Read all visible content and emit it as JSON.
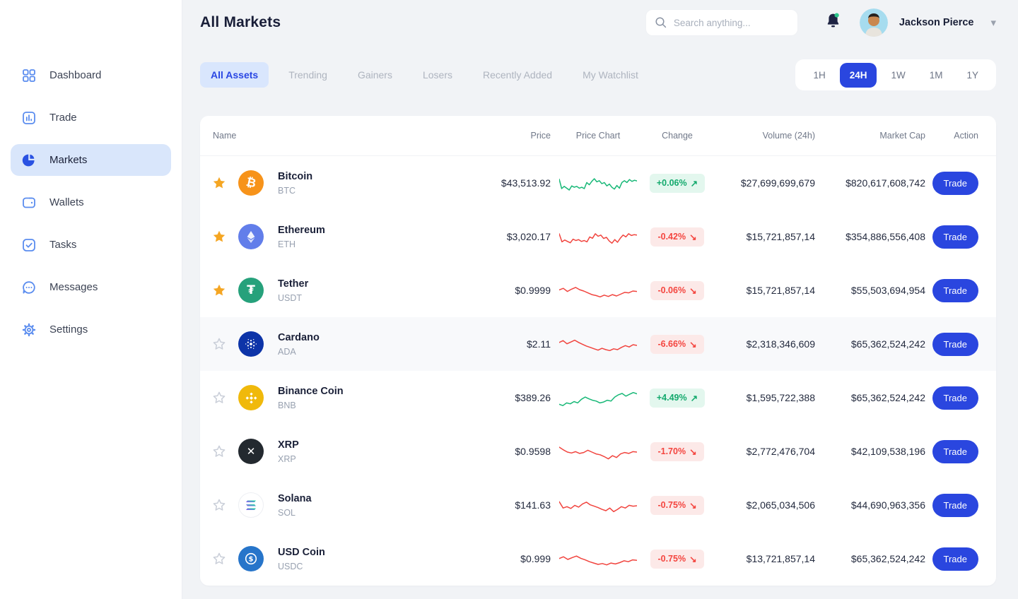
{
  "header": {
    "title": "All Markets",
    "search_placeholder": "Search anything...",
    "user_name": "Jackson Pierce"
  },
  "sidebar": {
    "items": [
      {
        "label": "Dashboard",
        "icon": "dashboard-grid-icon",
        "active": false
      },
      {
        "label": "Trade",
        "icon": "trade-chart-icon",
        "active": false
      },
      {
        "label": "Markets",
        "icon": "markets-pie-icon",
        "active": true
      },
      {
        "label": "Wallets",
        "icon": "wallet-icon",
        "active": false
      },
      {
        "label": "Tasks",
        "icon": "tasks-check-icon",
        "active": false
      },
      {
        "label": "Messages",
        "icon": "messages-bubble-icon",
        "active": false
      },
      {
        "label": "Settings",
        "icon": "settings-gear-icon",
        "active": false
      }
    ]
  },
  "tabs": [
    {
      "label": "All Assets",
      "active": true
    },
    {
      "label": "Trending",
      "active": false
    },
    {
      "label": "Gainers",
      "active": false
    },
    {
      "label": "Losers",
      "active": false
    },
    {
      "label": "Recently Added",
      "active": false
    },
    {
      "label": "My Watchlist",
      "active": false
    }
  ],
  "time_filters": [
    {
      "label": "1H",
      "active": false
    },
    {
      "label": "24H",
      "active": true
    },
    {
      "label": "1W",
      "active": false
    },
    {
      "label": "1M",
      "active": false
    },
    {
      "label": "1Y",
      "active": false
    }
  ],
  "table": {
    "columns": [
      "Name",
      "Price",
      "Price Chart",
      "Change",
      "Volume (24h)",
      "Market Cap",
      "Action"
    ],
    "action_label": "Trade",
    "arrow_up": "↗",
    "arrow_down": "↘",
    "rows": [
      {
        "name": "Bitcoin",
        "symbol": "BTC",
        "icon": "btc",
        "price": "$43,513.92",
        "change": "+0.06%",
        "direction": "up",
        "volume": "$27,699,699,679",
        "market_cap": "$820,617,608,742",
        "favorite": true,
        "highlighted": false,
        "sparkline": [
          70,
          28,
          38,
          30,
          22,
          40,
          34,
          38,
          30,
          34,
          28,
          55,
          45,
          60,
          72,
          58,
          63,
          50,
          55,
          40,
          48,
          34,
          26,
          42,
          30,
          55,
          63,
          55,
          68,
          60,
          65,
          62
        ]
      },
      {
        "name": "Ethereum",
        "symbol": "ETH",
        "icon": "eth",
        "price": "$3,020.17",
        "change": "-0.42%",
        "direction": "down",
        "volume": "$15,721,857,14",
        "market_cap": "$354,886,556,408",
        "favorite": true,
        "highlighted": false,
        "sparkline": [
          66,
          30,
          38,
          32,
          26,
          42,
          36,
          40,
          32,
          36,
          30,
          52,
          46,
          66,
          55,
          60,
          45,
          50,
          34,
          24,
          40,
          28,
          46,
          60,
          52,
          66,
          58,
          62,
          60
        ]
      },
      {
        "name": "Tether",
        "symbol": "USDT",
        "icon": "usdt",
        "price": "$0.9999",
        "change": "-0.06%",
        "direction": "down",
        "volume": "$15,721,857,14",
        "market_cap": "$55,503,694,954",
        "favorite": true,
        "highlighted": false,
        "sparkline": [
          55,
          62,
          48,
          58,
          66,
          56,
          50,
          42,
          34,
          30,
          24,
          32,
          26,
          34,
          28,
          36,
          44,
          42,
          50,
          48
        ]
      },
      {
        "name": "Cardano",
        "symbol": "ADA",
        "icon": "ada",
        "price": "$2.11",
        "change": "-6.66%",
        "direction": "down",
        "volume": "$2,318,346,609",
        "market_cap": "$65,362,524,242",
        "favorite": false,
        "highlighted": true,
        "sparkline": [
          60,
          68,
          54,
          62,
          70,
          60,
          52,
          44,
          38,
          32,
          26,
          34,
          28,
          24,
          32,
          28,
          38,
          46,
          40,
          50,
          47
        ]
      },
      {
        "name": "Binance Coin",
        "symbol": "BNB",
        "icon": "bnb",
        "price": "$389.26",
        "change": "+4.49%",
        "direction": "up",
        "volume": "$1,595,722,388",
        "market_cap": "$65,362,524,242",
        "favorite": false,
        "highlighted": false,
        "sparkline": [
          24,
          18,
          30,
          26,
          36,
          30,
          46,
          56,
          48,
          42,
          38,
          30,
          34,
          42,
          38,
          56,
          66,
          72,
          60,
          68,
          76,
          70
        ]
      },
      {
        "name": "XRP",
        "symbol": "XRP",
        "icon": "xrp",
        "price": "$0.9598",
        "change": "-1.70%",
        "direction": "down",
        "volume": "$2,772,476,704",
        "market_cap": "$42,109,538,196",
        "favorite": false,
        "highlighted": false,
        "sparkline": [
          72,
          60,
          50,
          46,
          52,
          44,
          48,
          58,
          50,
          42,
          38,
          30,
          20,
          34,
          26,
          42,
          48,
          44,
          52,
          50
        ]
      },
      {
        "name": "Solana",
        "symbol": "SOL",
        "icon": "sol",
        "price": "$141.63",
        "change": "-0.75%",
        "direction": "down",
        "volume": "$2,065,034,506",
        "market_cap": "$44,690,963,356",
        "favorite": false,
        "highlighted": false,
        "sparkline": [
          68,
          40,
          46,
          38,
          52,
          44,
          58,
          66,
          54,
          48,
          42,
          34,
          28,
          40,
          24,
          34,
          46,
          40,
          52,
          48,
          50
        ]
      },
      {
        "name": "USD Coin",
        "symbol": "USDC",
        "icon": "usdc",
        "price": "$0.999",
        "change": "-0.75%",
        "direction": "down",
        "volume": "$13,721,857,14",
        "market_cap": "$65,362,524,242",
        "favorite": false,
        "highlighted": false,
        "sparkline": [
          54,
          62,
          50,
          58,
          65,
          55,
          48,
          40,
          34,
          28,
          32,
          26,
          34,
          30,
          36,
          44,
          40,
          48,
          46
        ]
      }
    ]
  },
  "colors": {
    "accent_blue": "#2A46DF",
    "tab_blue": "#2946E3",
    "green": "#17B877",
    "red": "#F1443E",
    "gold_star": "#F5A623",
    "coin_btc": "#F7931A",
    "coin_eth": "#627EEA",
    "coin_usdt": "#26A17B",
    "coin_ada": "#0D34A8",
    "coin_bnb": "#F0B90B",
    "coin_xrp": "#23292F",
    "coin_usdc": "#2775CA"
  }
}
